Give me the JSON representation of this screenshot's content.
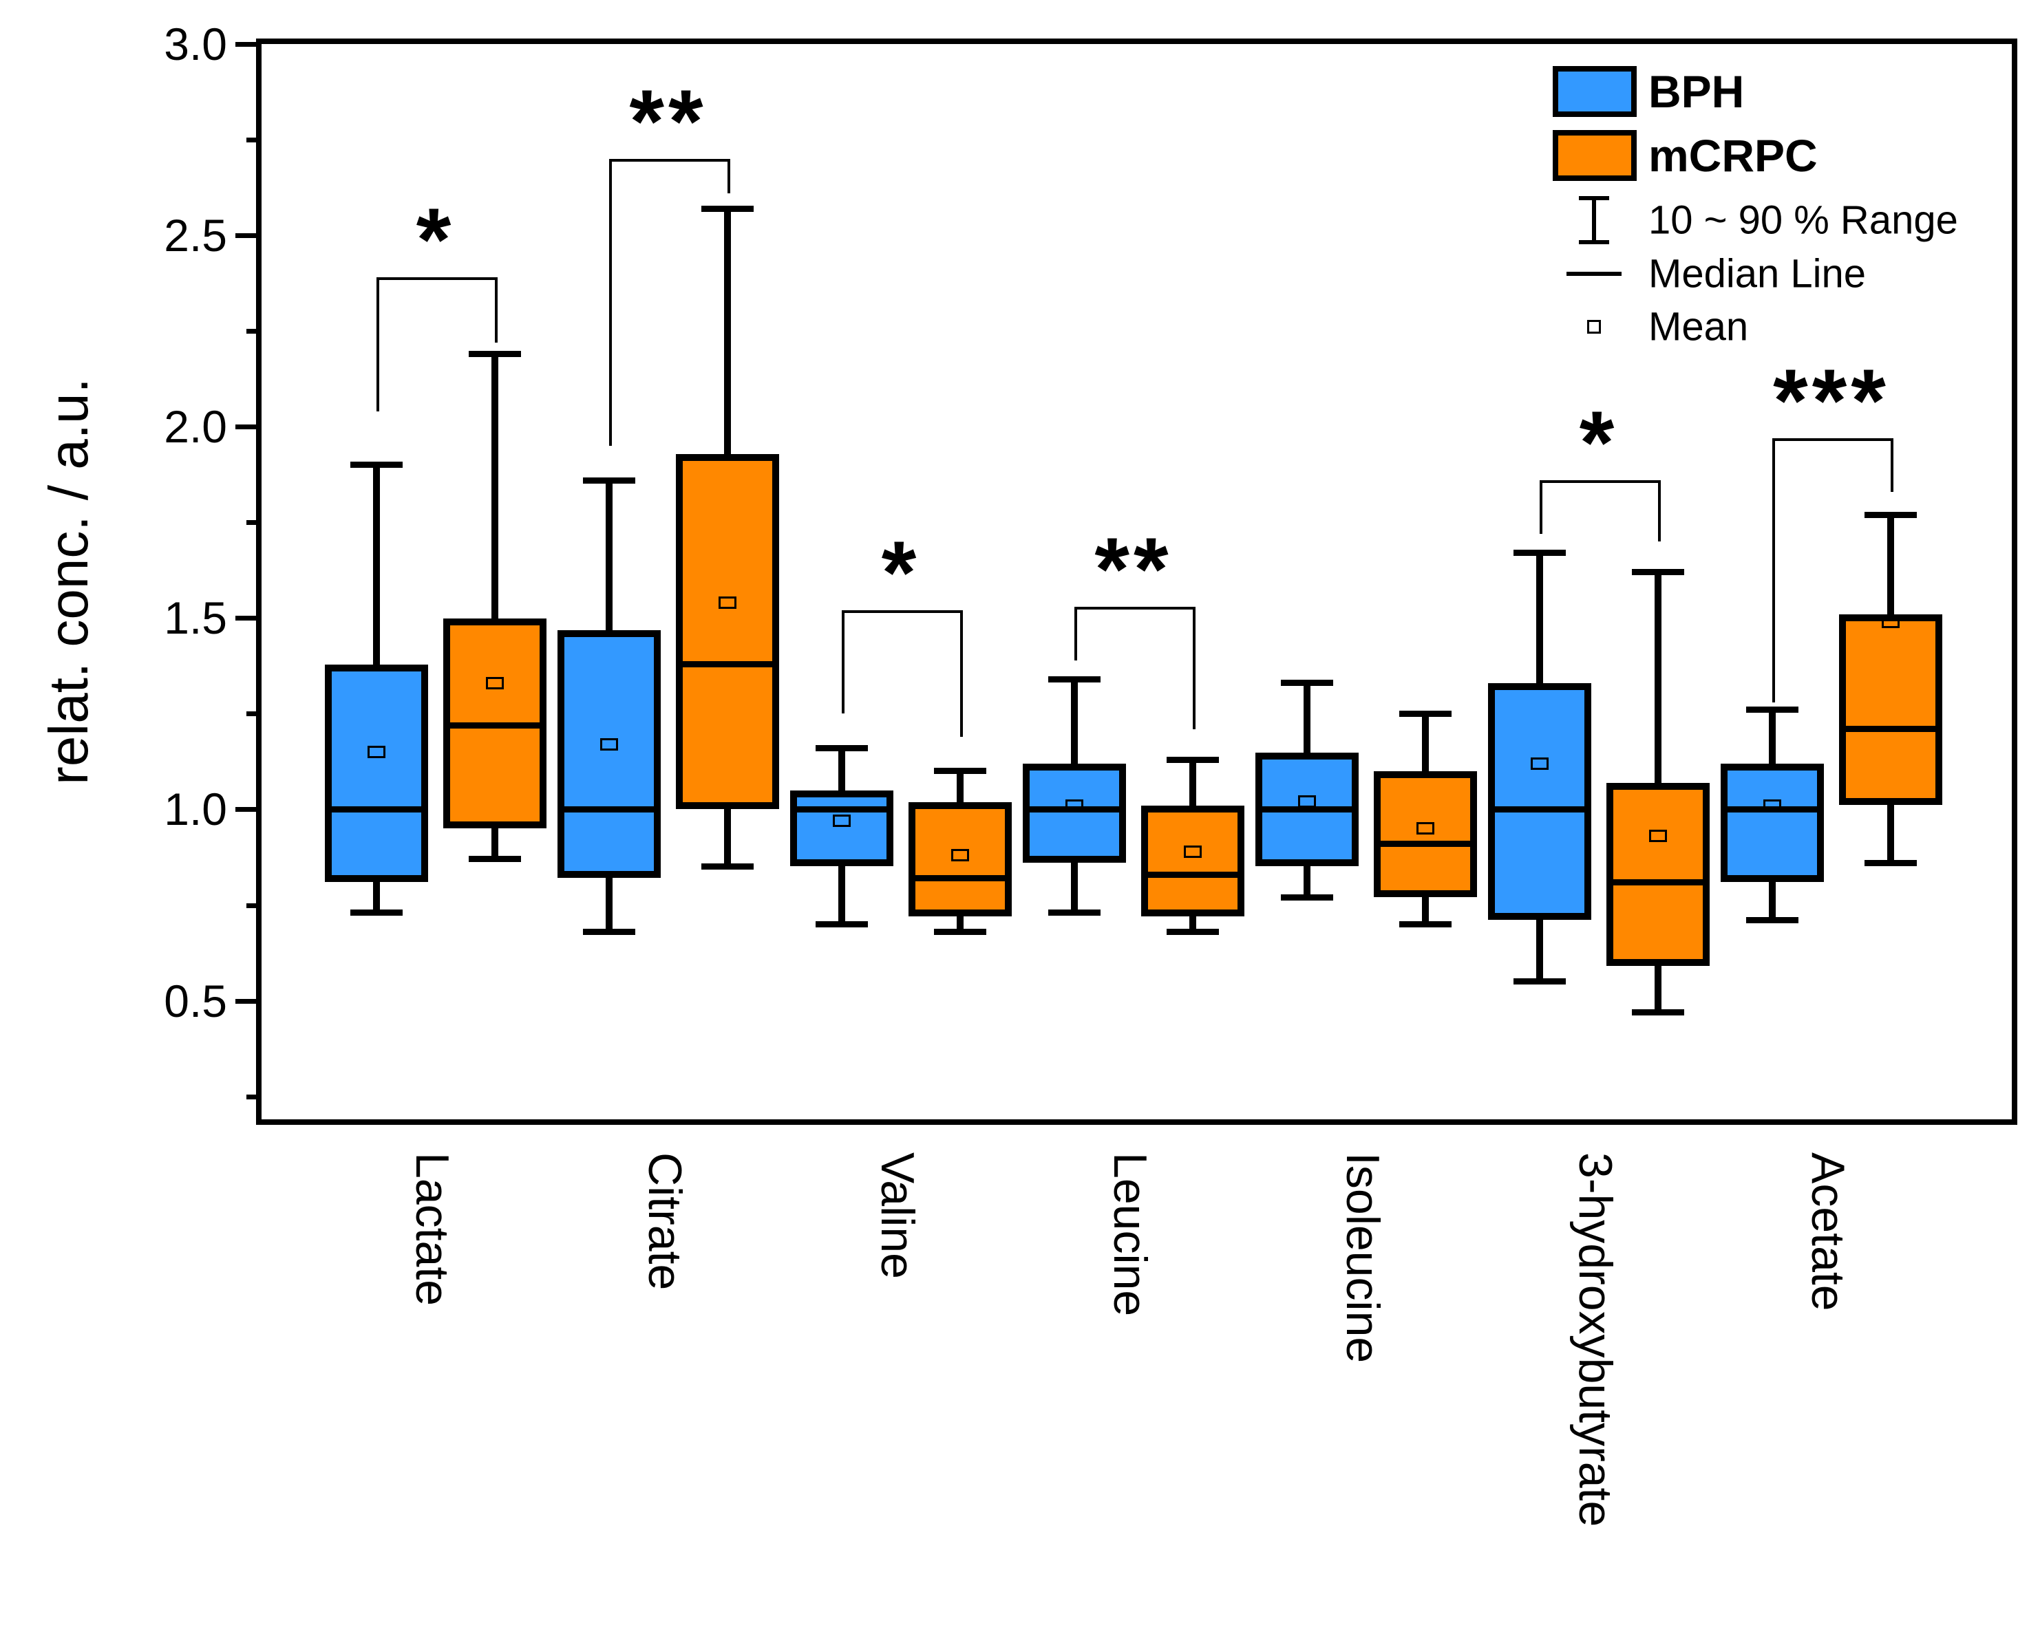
{
  "chart_data": {
    "type": "box",
    "title": "",
    "xlabel": "",
    "ylabel": "relat. conc. / a.u.",
    "ylim": [
      0.19,
      3.0
    ],
    "grid": false,
    "legend_position": "top-right",
    "yticks": [
      {
        "v": 0.5,
        "label": "0.5"
      },
      {
        "v": 1.0,
        "label": "1.0"
      },
      {
        "v": 1.5,
        "label": "1.5"
      },
      {
        "v": 2.0,
        "label": "2.0"
      },
      {
        "v": 2.5,
        "label": "2.5"
      },
      {
        "v": 3.0,
        "label": "3.0"
      }
    ],
    "yticks_minor": [
      0.25,
      0.75,
      1.25,
      1.75,
      2.25,
      2.75
    ],
    "categories": [
      "Lactate",
      "Citrate",
      "Valine",
      "Leucine",
      "Isoleucine",
      "3-hydroxybutyrate",
      "Acetate"
    ],
    "whisker_definition": "10 ~ 90 % Range",
    "series": [
      {
        "name": "BPH",
        "color": "#3399FF",
        "boxes": [
          {
            "whisker_low": 0.73,
            "q1": 0.82,
            "median": 1.0,
            "q3": 1.37,
            "whisker_high": 1.9,
            "mean": 1.15
          },
          {
            "whisker_low": 0.68,
            "q1": 0.83,
            "median": 1.0,
            "q3": 1.46,
            "whisker_high": 1.86,
            "mean": 1.17
          },
          {
            "whisker_low": 0.7,
            "q1": 0.86,
            "median": 1.0,
            "q3": 1.04,
            "whisker_high": 1.16,
            "mean": 0.97
          },
          {
            "whisker_low": 0.73,
            "q1": 0.87,
            "median": 1.0,
            "q3": 1.11,
            "whisker_high": 1.34,
            "mean": 1.01
          },
          {
            "whisker_low": 0.77,
            "q1": 0.86,
            "median": 1.0,
            "q3": 1.14,
            "whisker_high": 1.33,
            "mean": 1.02
          },
          {
            "whisker_low": 0.55,
            "q1": 0.72,
            "median": 1.0,
            "q3": 1.32,
            "whisker_high": 1.67,
            "mean": 1.12
          },
          {
            "whisker_low": 0.71,
            "q1": 0.82,
            "median": 1.0,
            "q3": 1.11,
            "whisker_high": 1.26,
            "mean": 1.01
          }
        ]
      },
      {
        "name": "mCRPC",
        "color": "#FF8800",
        "boxes": [
          {
            "whisker_low": 0.87,
            "q1": 0.96,
            "median": 1.22,
            "q3": 1.49,
            "whisker_high": 2.19,
            "mean": 1.33
          },
          {
            "whisker_low": 0.85,
            "q1": 1.01,
            "median": 1.38,
            "q3": 1.92,
            "whisker_high": 2.57,
            "mean": 1.54
          },
          {
            "whisker_low": 0.68,
            "q1": 0.73,
            "median": 0.82,
            "q3": 1.01,
            "whisker_high": 1.1,
            "mean": 0.88
          },
          {
            "whisker_low": 0.68,
            "q1": 0.73,
            "median": 0.83,
            "q3": 1.0,
            "whisker_high": 1.13,
            "mean": 0.89
          },
          {
            "whisker_low": 0.7,
            "q1": 0.78,
            "median": 0.91,
            "q3": 1.09,
            "whisker_high": 1.25,
            "mean": 0.95
          },
          {
            "whisker_low": 0.47,
            "q1": 0.6,
            "median": 0.81,
            "q3": 1.06,
            "whisker_high": 1.62,
            "mean": 0.93
          },
          {
            "whisker_low": 0.86,
            "q1": 1.02,
            "median": 1.21,
            "q3": 1.5,
            "whisker_high": 1.77,
            "mean": 1.49
          }
        ]
      }
    ],
    "significance": [
      {
        "category_index": 0,
        "label": "*",
        "bar_y": 2.39,
        "left_leg_y": 2.04,
        "right_leg_y": 2.22
      },
      {
        "category_index": 1,
        "label": "**",
        "bar_y": 2.7,
        "left_leg_y": 1.95,
        "right_leg_y": 2.61
      },
      {
        "category_index": 2,
        "label": "*",
        "bar_y": 1.52,
        "left_leg_y": 1.25,
        "right_leg_y": 1.19
      },
      {
        "category_index": 3,
        "label": "**",
        "bar_y": 1.53,
        "left_leg_y": 1.39,
        "right_leg_y": 1.21
      },
      {
        "category_index": 5,
        "label": "*",
        "bar_y": 1.86,
        "left_leg_y": 1.72,
        "right_leg_y": 1.7
      },
      {
        "category_index": 6,
        "label": "***",
        "bar_y": 1.97,
        "left_leg_y": 1.28,
        "right_leg_y": 1.83
      }
    ],
    "legend": {
      "entries": [
        {
          "icon": "box-bph-icon",
          "label": "BPH",
          "bold": true
        },
        {
          "icon": "box-mcrpc-icon",
          "label": "mCRPC",
          "bold": true
        },
        {
          "icon": "errorbar-icon",
          "label": "10 ~ 90 % Range",
          "bold": false
        },
        {
          "icon": "median-line-icon",
          "label": "Median Line",
          "bold": false
        },
        {
          "icon": "mean-square-icon",
          "label": "Mean",
          "bold": false
        }
      ]
    }
  }
}
